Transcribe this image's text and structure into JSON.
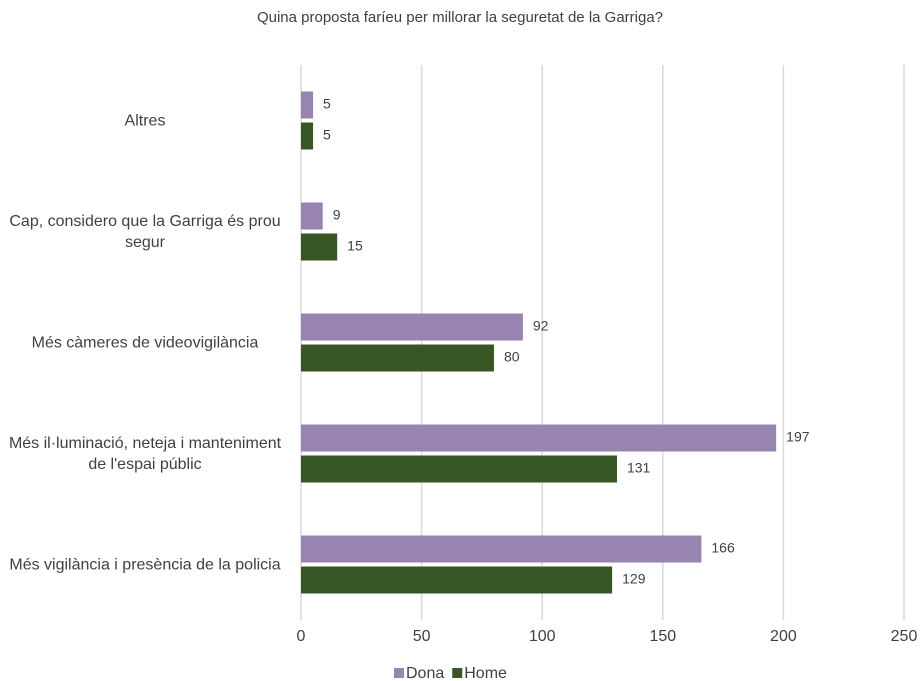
{
  "chart_data": {
    "type": "bar",
    "orientation": "horizontal",
    "title": "Quina proposta faríeu per millorar la seguretat de la Garriga?",
    "categories": [
      "Altres",
      "Cap, considero que la Garriga és prou segur",
      "Més càmeres de videovigilància",
      "Més il·luminació, neteja i manteniment de l'espai públic",
      "Més vigilància i presència de la policia"
    ],
    "series": [
      {
        "name": "Dona",
        "color": "#9784b1",
        "values": [
          5,
          9,
          92,
          197,
          166
        ]
      },
      {
        "name": "Home",
        "color": "#375623",
        "values": [
          5,
          15,
          80,
          131,
          129
        ]
      }
    ],
    "xlim": [
      0,
      250
    ],
    "xticks": [
      0,
      50,
      100,
      150,
      200,
      250
    ],
    "grid": true,
    "legend": "bottom"
  }
}
